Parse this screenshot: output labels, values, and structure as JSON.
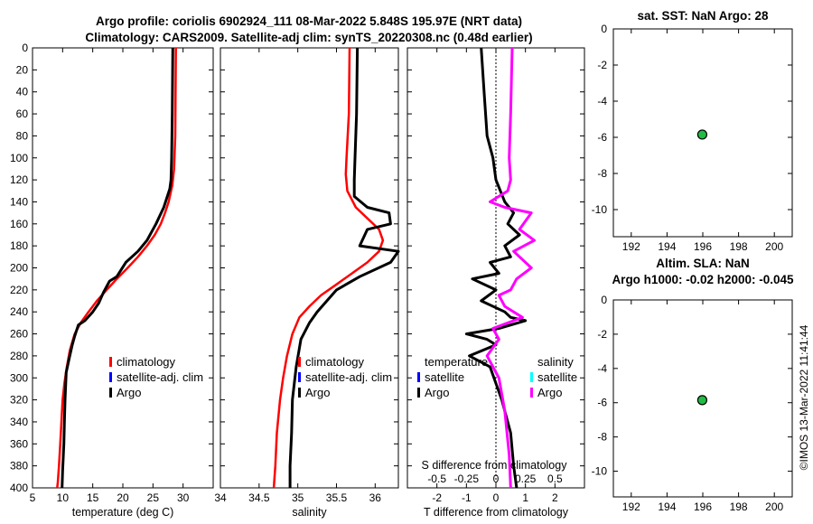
{
  "figure": {
    "title_line1": "Argo profile: coriolis 6902924_111 08-Mar-2022 5.848S 195.97E (NRT data)",
    "title_line2": "Climatology: CARS2009. Satellite-adj clim: synTS_20220308.nc (0.48d earlier)",
    "stamp": "©IMOS 13-Mar-2022 11:41:44"
  },
  "colors": {
    "climatology": "#ff0000",
    "satellite": "#0000ff",
    "argo": "#000000",
    "salinity_diff": "#ff00ff",
    "salinity_satellite": "#00ffff",
    "marker": "#22bb44"
  },
  "chart_data": [
    {
      "id": "temperature",
      "type": "line",
      "xlabel": "temperature (deg C)",
      "xlim": [
        5,
        35
      ],
      "ylim": [
        0,
        400
      ],
      "y_reversed": true,
      "xticks": [
        5,
        10,
        15,
        20,
        25,
        30
      ],
      "yticks": [
        0,
        20,
        40,
        60,
        80,
        100,
        120,
        140,
        160,
        180,
        200,
        220,
        240,
        260,
        280,
        300,
        320,
        340,
        360,
        380,
        400
      ],
      "legend": [
        "climatology",
        "satellite-adj. clim",
        "Argo"
      ],
      "series": [
        {
          "name": "climatology",
          "color": "#ff0000",
          "x": [
            28.8,
            28.7,
            28.5,
            28.2,
            27.6,
            27.0,
            26.3,
            25.3,
            24.0,
            22.5,
            20.8,
            19.0,
            17.3,
            15.7,
            14.3,
            13.0,
            12.0,
            11.2,
            10.7,
            10.3,
            10.0,
            9.8,
            9.6,
            9.4,
            9.2,
            9.1
          ],
          "depth": [
            0,
            80,
            110,
            125,
            140,
            150,
            160,
            170,
            180,
            190,
            200,
            210,
            220,
            230,
            240,
            250,
            260,
            275,
            290,
            305,
            320,
            340,
            360,
            380,
            395,
            400
          ]
        },
        {
          "name": "Argo",
          "color": "#000000",
          "x": [
            28.3,
            28.2,
            28.1,
            28.0,
            27.8,
            26.8,
            25.5,
            24.0,
            22.5,
            20.5,
            19.0,
            17.8,
            16.8,
            16.0,
            15.0,
            13.7,
            12.6,
            12.0,
            11.6,
            11.1,
            10.6,
            10.4,
            10.3,
            10.2,
            10.0,
            9.9
          ],
          "depth": [
            0,
            60,
            100,
            120,
            128,
            145,
            160,
            175,
            185,
            195,
            208,
            212,
            222,
            232,
            240,
            248,
            252,
            262,
            270,
            282,
            295,
            320,
            340,
            360,
            385,
            400
          ]
        }
      ]
    },
    {
      "id": "salinity",
      "type": "line",
      "xlabel": "salinity",
      "xlim": [
        34,
        36.3
      ],
      "ylim": [
        0,
        400
      ],
      "y_reversed": true,
      "xticks": [
        34,
        34.5,
        35,
        35.5,
        36
      ],
      "xtick_labels": [
        "34",
        "34.5",
        "35",
        "35.5",
        "36"
      ],
      "legend": [
        "climatology",
        "satellite-adj. clim",
        "Argo"
      ],
      "series": [
        {
          "name": "climatology",
          "color": "#ff0000",
          "x": [
            35.67,
            35.66,
            35.63,
            35.62,
            35.64,
            35.75,
            35.9,
            36.05,
            36.1,
            36.05,
            35.9,
            35.7,
            35.5,
            35.3,
            35.15,
            35.02,
            34.93,
            34.86,
            34.81,
            34.77,
            34.73,
            34.71,
            34.69
          ],
          "depth": [
            0,
            60,
            100,
            115,
            130,
            145,
            155,
            165,
            175,
            185,
            195,
            205,
            215,
            225,
            235,
            245,
            260,
            280,
            300,
            320,
            350,
            380,
            400
          ]
        },
        {
          "name": "Argo",
          "color": "#000000",
          "x": [
            35.77,
            35.76,
            35.74,
            35.73,
            35.73,
            35.9,
            36.18,
            36.2,
            35.9,
            35.8,
            36.3,
            36.2,
            35.8,
            35.5,
            35.25,
            35.15,
            35.04,
            34.98,
            34.93,
            34.92,
            34.9,
            34.9
          ],
          "depth": [
            0,
            60,
            100,
            120,
            135,
            145,
            150,
            160,
            165,
            180,
            185,
            195,
            208,
            220,
            240,
            250,
            265,
            290,
            320,
            350,
            380,
            400
          ]
        }
      ]
    },
    {
      "id": "difference",
      "type": "line",
      "xlabel": "T difference from climatology",
      "xlabel_top": "S difference from climatology",
      "xlim": [
        -3,
        3
      ],
      "ylim": [
        0,
        400
      ],
      "y_reversed": true,
      "xticks": [
        -2,
        -1,
        0,
        1,
        2
      ],
      "xticks_s": [
        -0.5,
        -0.25,
        0,
        0.25,
        0.5
      ],
      "xtick_s_labels": [
        "-0.5",
        "-0.25",
        "0",
        "0.25",
        "0.5"
      ],
      "legend_temperature": {
        "header": "temperature",
        "items": [
          "satellite",
          "Argo"
        ]
      },
      "legend_salinity": {
        "header": "salinity",
        "items": [
          "satellite",
          "Argo"
        ]
      },
      "series": [
        {
          "name": "T difference Argo",
          "color": "#000000",
          "x": [
            -0.5,
            -0.4,
            -0.3,
            -0.1,
            0,
            0.3,
            0.6,
            0.4,
            0.8,
            0.3,
            0.5,
            -0.2,
            0.1,
            -0.8,
            0.0,
            -0.5,
            0.3,
            0.5,
            1.0,
            0.1,
            -1.0,
            -0.3,
            0.0,
            -0.9,
            -0.2,
            0.2,
            0.5,
            0.6,
            0.7
          ],
          "depth": [
            0,
            40,
            80,
            100,
            120,
            140,
            150,
            160,
            170,
            180,
            190,
            195,
            205,
            210,
            220,
            230,
            240,
            245,
            248,
            255,
            260,
            265,
            270,
            280,
            290,
            320,
            350,
            380,
            400
          ]
        },
        {
          "name": "S difference Argo",
          "color": "#ff00ff",
          "x": [
            0.55,
            0.5,
            0.45,
            0.5,
            0.4,
            -0.2,
            0.3,
            1.2,
            0.8,
            1.3,
            0.6,
            1.2,
            0.7,
            0.5,
            0.1,
            0.3,
            0.9,
            -0.1,
            0.1,
            -0.3,
            0.1,
            0.3,
            0.45,
            0.5
          ],
          "depth": [
            0,
            60,
            100,
            120,
            130,
            140,
            145,
            150,
            165,
            175,
            185,
            200,
            210,
            220,
            225,
            235,
            245,
            255,
            265,
            280,
            300,
            330,
            370,
            400
          ]
        }
      ]
    },
    {
      "id": "sst",
      "type": "scatter",
      "title": "sat. SST: NaN Argo: 28",
      "xlim": [
        191,
        201
      ],
      "ylim": [
        -11.5,
        0
      ],
      "xticks": [
        192,
        194,
        196,
        198,
        200
      ],
      "yticks": [
        0,
        -2,
        -4,
        -6,
        -8,
        -10
      ],
      "points": [
        {
          "x": 195.97,
          "y": -5.848
        }
      ]
    },
    {
      "id": "sla",
      "type": "scatter",
      "title_line1": "Altim. SLA: NaN",
      "title_line2": "Argo h1000: -0.02 h2000: -0.045",
      "xlim": [
        191,
        201
      ],
      "ylim": [
        -11.5,
        0
      ],
      "xticks": [
        192,
        194,
        196,
        198,
        200
      ],
      "yticks": [
        0,
        -2,
        -4,
        -6,
        -8,
        -10
      ],
      "points": [
        {
          "x": 195.97,
          "y": -5.848
        }
      ]
    }
  ]
}
